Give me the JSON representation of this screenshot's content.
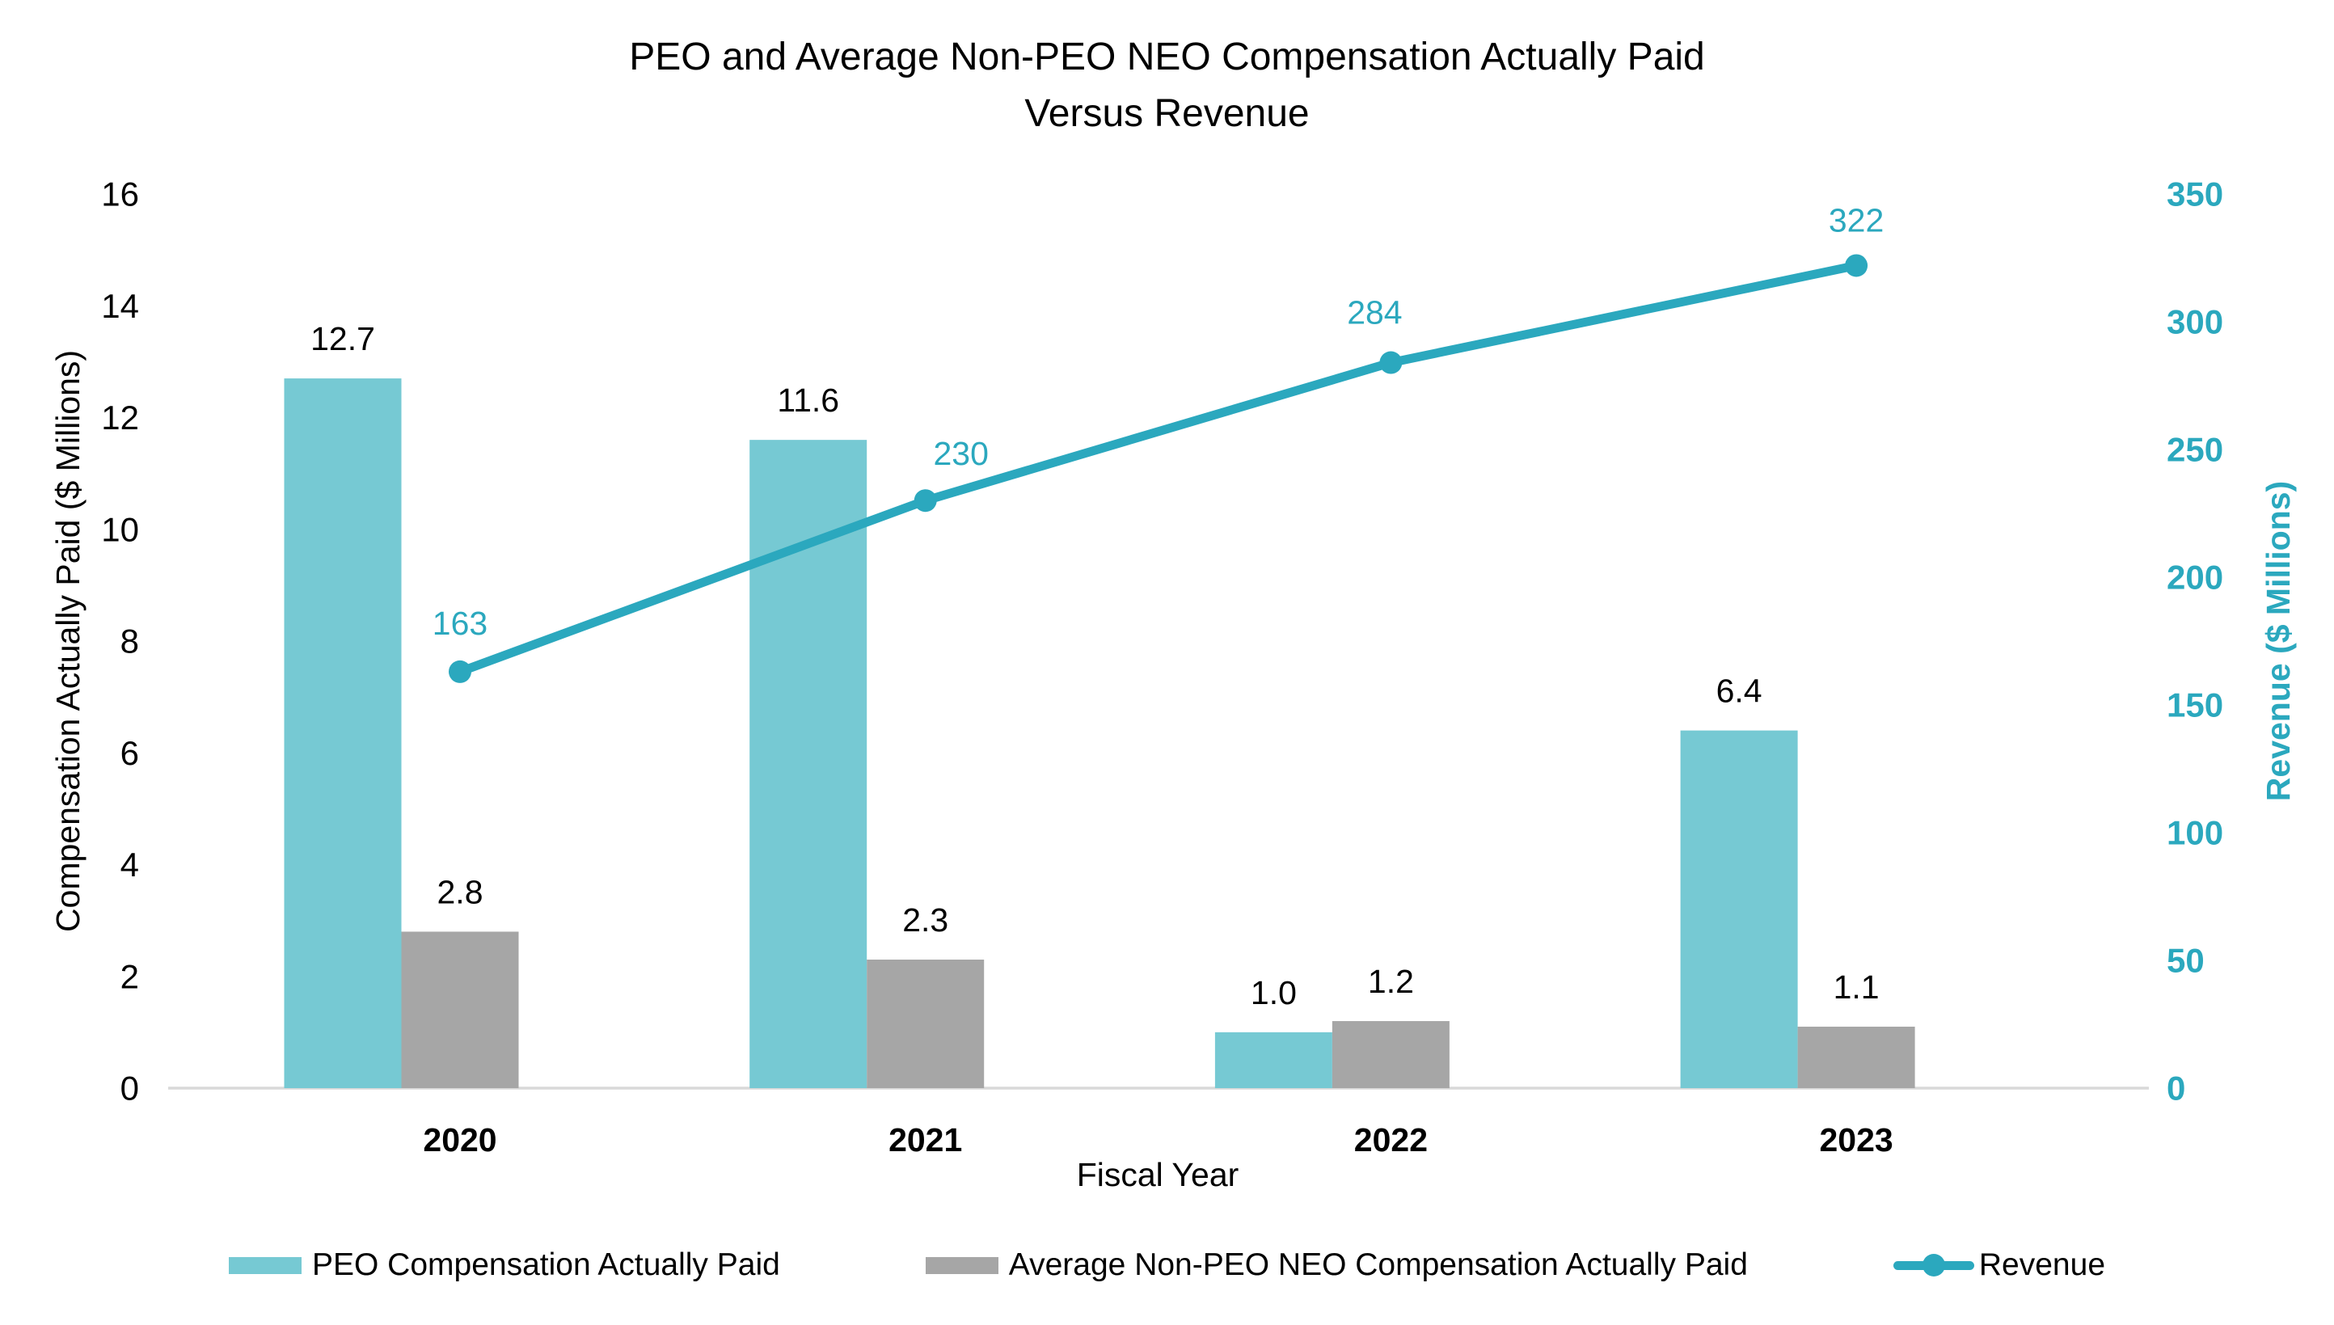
{
  "chart_data": {
    "type": "bar+line combo",
    "title": "PEO and Average Non-PEO NEO Compensation Actually Paid\nVersus Revenue",
    "categories": [
      "2020",
      "2021",
      "2022",
      "2023"
    ],
    "xlabel": "Fiscal Year",
    "left_axis": {
      "label": "Compensation Actually Paid ($ Millions)",
      "min": 0,
      "max": 16,
      "step": 2,
      "tick_labels": [
        "0",
        "2",
        "4",
        "6",
        "8",
        "10",
        "12",
        "14",
        "16"
      ]
    },
    "right_axis": {
      "label": "Revenue ($ Millions)",
      "min": 0,
      "max": 350,
      "step": 50,
      "tick_labels": [
        "0",
        "50",
        "100",
        "150",
        "200",
        "250",
        "300",
        "350"
      ]
    },
    "series": [
      {
        "name": "PEO Compensation Actually Paid",
        "type": "bar",
        "axis": "left",
        "color": "#76C9D3",
        "values": [
          12.7,
          11.6,
          1.0,
          6.4
        ],
        "data_labels": [
          "12.7",
          "11.6",
          "1.0",
          "6.4"
        ]
      },
      {
        "name": "Average Non-PEO NEO Compensation Actually Paid",
        "type": "bar",
        "axis": "left",
        "color": "#A6A6A6",
        "values": [
          2.8,
          2.3,
          1.2,
          1.1
        ],
        "data_labels": [
          "2.8",
          "2.3",
          "1.2",
          "1.1"
        ]
      },
      {
        "name": "Revenue",
        "type": "line",
        "axis": "right",
        "color": "#2BA8BE",
        "values": [
          163,
          230,
          284,
          322
        ],
        "data_labels": [
          "163",
          "230",
          "284",
          "322"
        ]
      }
    ],
    "legend_position": "bottom",
    "grid": false,
    "colors": {
      "axis_line": "#D9D9D9",
      "text": "#000000",
      "revenue_text": "#2BA8BE"
    }
  }
}
